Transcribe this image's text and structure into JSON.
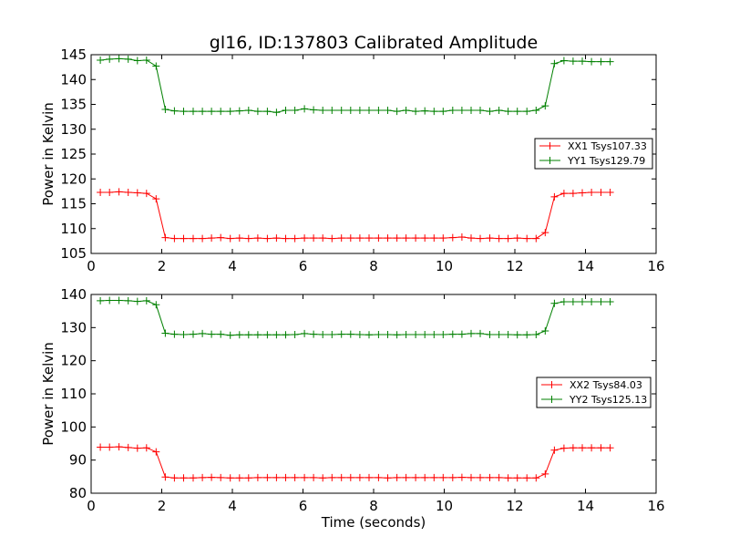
{
  "chart_data": [
    {
      "type": "line",
      "title": "gl16, ID:137803 Calibrated Amplitude",
      "xlabel": "",
      "ylabel": "Power in Kelvin",
      "xlim": [
        0,
        16
      ],
      "ylim": [
        105,
        145
      ],
      "xticks": [
        "0",
        "2",
        "4",
        "6",
        "8",
        "10",
        "12",
        "14",
        "16"
      ],
      "yticks": [
        "105",
        "110",
        "115",
        "120",
        "125",
        "130",
        "135",
        "140",
        "145"
      ],
      "grid": false,
      "legend_position": "right",
      "x": [
        0.26,
        0.52,
        0.79,
        1.05,
        1.31,
        1.57,
        1.84,
        2.1,
        2.36,
        2.62,
        2.89,
        3.15,
        3.41,
        3.67,
        3.94,
        4.2,
        4.46,
        4.72,
        4.99,
        5.25,
        5.51,
        5.77,
        6.04,
        6.3,
        6.56,
        6.82,
        7.09,
        7.35,
        7.61,
        7.87,
        8.14,
        8.4,
        8.66,
        8.92,
        9.19,
        9.45,
        9.71,
        9.97,
        10.24,
        10.5,
        10.76,
        11.02,
        11.29,
        11.55,
        11.81,
        12.07,
        12.34,
        12.6,
        12.86,
        13.12,
        13.39,
        13.65,
        13.91,
        14.17,
        14.44,
        14.7
      ],
      "series": [
        {
          "name": "XX1 Tsys107.33",
          "color": "#ff0000",
          "values": [
            117.3,
            117.3,
            117.4,
            117.3,
            117.2,
            117.1,
            116.0,
            108.2,
            108.0,
            108.0,
            108.0,
            108.0,
            108.1,
            108.2,
            108.0,
            108.1,
            108.0,
            108.1,
            108.0,
            108.1,
            108.0,
            108.0,
            108.1,
            108.1,
            108.1,
            108.0,
            108.1,
            108.1,
            108.1,
            108.1,
            108.1,
            108.1,
            108.1,
            108.1,
            108.1,
            108.1,
            108.1,
            108.1,
            108.2,
            108.3,
            108.1,
            108.0,
            108.1,
            108.0,
            108.0,
            108.1,
            108.0,
            108.0,
            109.2,
            116.4,
            117.1,
            117.1,
            117.2,
            117.3,
            117.3,
            117.3
          ]
        },
        {
          "name": "YY1 Tsys129.79",
          "color": "#008000",
          "values": [
            143.9,
            144.1,
            144.2,
            144.1,
            143.8,
            143.9,
            142.7,
            134.0,
            133.7,
            133.6,
            133.6,
            133.6,
            133.6,
            133.6,
            133.6,
            133.7,
            133.8,
            133.6,
            133.6,
            133.4,
            133.8,
            133.8,
            134.1,
            133.9,
            133.8,
            133.8,
            133.8,
            133.8,
            133.8,
            133.8,
            133.8,
            133.8,
            133.6,
            133.8,
            133.6,
            133.7,
            133.6,
            133.6,
            133.8,
            133.8,
            133.8,
            133.8,
            133.6,
            133.8,
            133.6,
            133.6,
            133.6,
            133.8,
            134.7,
            143.2,
            143.8,
            143.7,
            143.7,
            143.6,
            143.6,
            143.6
          ]
        }
      ]
    },
    {
      "type": "line",
      "title": "",
      "xlabel": "Time (seconds)",
      "ylabel": "Power in Kelvin",
      "xlim": [
        0,
        16
      ],
      "ylim": [
        80,
        140
      ],
      "xticks": [
        "0",
        "2",
        "4",
        "6",
        "8",
        "10",
        "12",
        "14",
        "16"
      ],
      "yticks": [
        "80",
        "90",
        "100",
        "110",
        "120",
        "130",
        "140"
      ],
      "grid": false,
      "legend_position": "right",
      "x": [
        0.26,
        0.52,
        0.79,
        1.05,
        1.31,
        1.57,
        1.84,
        2.1,
        2.36,
        2.62,
        2.89,
        3.15,
        3.41,
        3.67,
        3.94,
        4.2,
        4.46,
        4.72,
        4.99,
        5.25,
        5.51,
        5.77,
        6.04,
        6.3,
        6.56,
        6.82,
        7.09,
        7.35,
        7.61,
        7.87,
        8.14,
        8.4,
        8.66,
        8.92,
        9.19,
        9.45,
        9.71,
        9.97,
        10.24,
        10.5,
        10.76,
        11.02,
        11.29,
        11.55,
        11.81,
        12.07,
        12.34,
        12.6,
        12.86,
        13.12,
        13.39,
        13.65,
        13.91,
        14.17,
        14.44,
        14.7
      ],
      "series": [
        {
          "name": "XX2 Tsys84.03",
          "color": "#ff0000",
          "values": [
            93.9,
            93.9,
            94.0,
            93.8,
            93.6,
            93.7,
            92.5,
            84.9,
            84.6,
            84.6,
            84.6,
            84.7,
            84.8,
            84.7,
            84.6,
            84.6,
            84.6,
            84.7,
            84.7,
            84.7,
            84.7,
            84.7,
            84.7,
            84.7,
            84.6,
            84.7,
            84.7,
            84.7,
            84.7,
            84.7,
            84.7,
            84.6,
            84.7,
            84.7,
            84.7,
            84.7,
            84.7,
            84.7,
            84.7,
            84.8,
            84.7,
            84.7,
            84.7,
            84.7,
            84.6,
            84.6,
            84.6,
            84.6,
            85.8,
            93.0,
            93.6,
            93.7,
            93.7,
            93.7,
            93.7,
            93.7
          ]
        },
        {
          "name": "YY2 Tsys125.13",
          "color": "#008000",
          "values": [
            138.1,
            138.2,
            138.2,
            138.1,
            137.9,
            138.1,
            136.9,
            128.3,
            128.0,
            127.9,
            128.0,
            128.2,
            128.0,
            128.0,
            127.7,
            127.8,
            127.8,
            127.8,
            127.8,
            127.8,
            127.8,
            127.9,
            128.2,
            128.0,
            127.9,
            127.9,
            128.0,
            128.0,
            127.9,
            127.8,
            127.9,
            127.9,
            127.8,
            127.9,
            127.9,
            127.9,
            127.9,
            127.9,
            128.0,
            128.0,
            128.2,
            128.2,
            127.9,
            127.9,
            127.9,
            127.8,
            127.8,
            127.9,
            129.0,
            137.3,
            137.8,
            137.8,
            137.8,
            137.8,
            137.8,
            137.8
          ]
        }
      ]
    }
  ]
}
